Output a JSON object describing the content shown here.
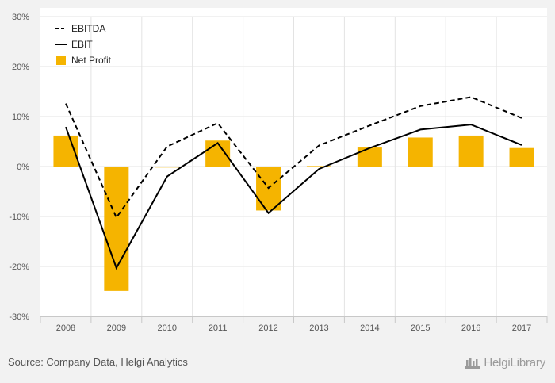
{
  "chart_data": {
    "type": "bar",
    "categories": [
      "2008",
      "2009",
      "2010",
      "2011",
      "2012",
      "2013",
      "2014",
      "2015",
      "2016",
      "2017"
    ],
    "series": [
      {
        "name": "EBITDA",
        "kind": "line",
        "style": "dashed",
        "color": "#000000",
        "values": [
          12.6,
          -10.2,
          4.0,
          8.7,
          -4.3,
          4.2,
          8.2,
          12.1,
          13.9,
          9.7
        ]
      },
      {
        "name": "EBIT",
        "kind": "line",
        "style": "solid",
        "color": "#000000",
        "values": [
          7.9,
          -20.3,
          -2.0,
          4.7,
          -9.3,
          -0.5,
          3.7,
          7.4,
          8.4,
          4.3
        ]
      },
      {
        "name": "Net Profit",
        "kind": "bar",
        "color": "#f5b400",
        "values": [
          6.2,
          -24.9,
          -0.2,
          5.2,
          -8.8,
          0.1,
          3.8,
          5.8,
          6.2,
          3.7
        ]
      }
    ],
    "ylim": [
      -30,
      30
    ],
    "yticks": [
      -30,
      -20,
      -10,
      0,
      10,
      20,
      30
    ],
    "ytick_labels": [
      "-30%",
      "-20%",
      "-10%",
      "0%",
      "10%",
      "20%",
      "30%"
    ],
    "grid": true,
    "legend_position": "top-left",
    "title": "",
    "xlabel": "",
    "ylabel": ""
  },
  "footer": {
    "source": "Source: Company Data, Helgi Analytics",
    "brand": "HelgiLibrary"
  },
  "colors": {
    "background": "#f2f2f2",
    "plot_background": "#ffffff",
    "bar": "#f5b400",
    "grid": "#e3e3e3"
  }
}
